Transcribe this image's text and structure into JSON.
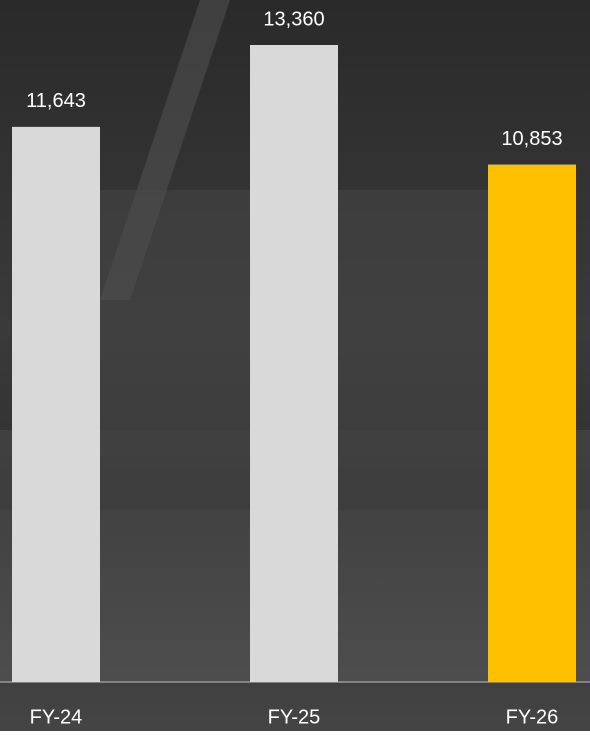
{
  "chart_data": {
    "type": "bar",
    "categories": [
      "FY-24",
      "FY-25",
      "FY-26"
    ],
    "values": [
      11643,
      13360,
      10853
    ],
    "value_labels": [
      "11,643",
      "13,360",
      "10,853"
    ],
    "colors": [
      "#d9d9d9",
      "#d9d9d9",
      "#ffc000"
    ]
  }
}
